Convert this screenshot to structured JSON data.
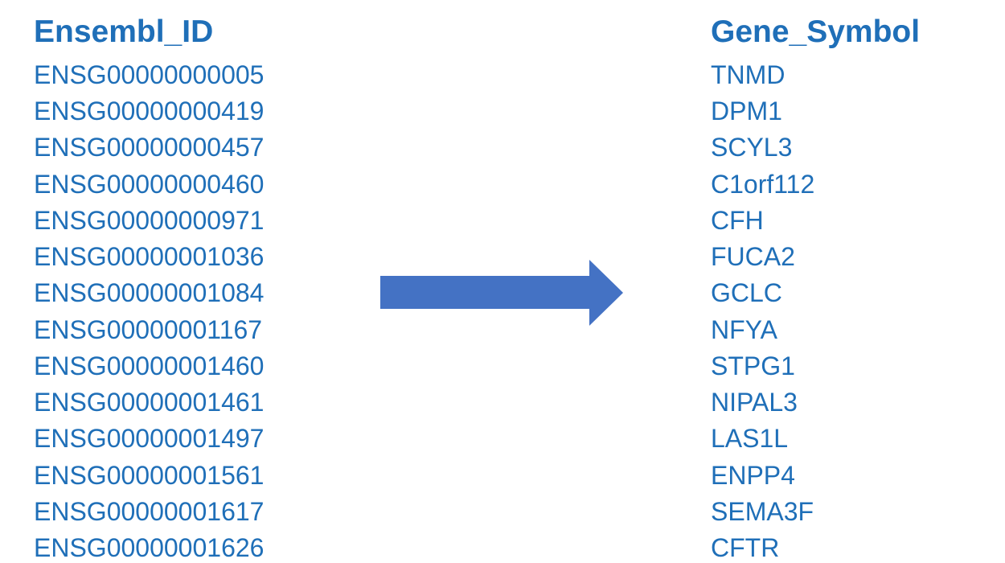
{
  "left": {
    "header": "Ensembl_ID",
    "items": [
      "ENSG00000000005",
      "ENSG00000000419",
      "ENSG00000000457",
      "ENSG00000000460",
      "ENSG00000000971",
      "ENSG00000001036",
      "ENSG00000001084",
      "ENSG00000001167",
      "ENSG00000001460",
      "ENSG00000001461",
      "ENSG00000001497",
      "ENSG00000001561",
      "ENSG00000001617",
      "ENSG00000001626"
    ]
  },
  "right": {
    "header": "Gene_Symbol",
    "items": [
      "TNMD",
      "DPM1",
      "SCYL3",
      "C1orf112",
      "CFH",
      "FUCA2",
      "GCLC",
      "NFYA",
      "STPG1",
      "NIPAL3",
      "LAS1L",
      "ENPP4",
      "SEMA3F",
      "CFTR"
    ]
  }
}
